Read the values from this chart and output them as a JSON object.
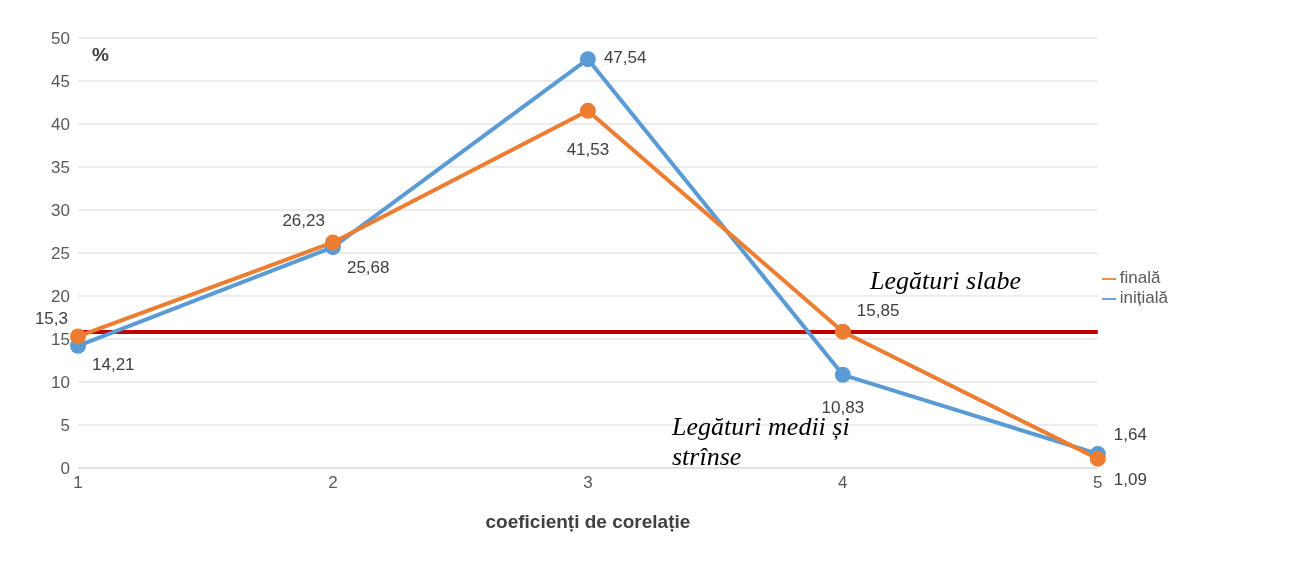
{
  "chart_data": {
    "type": "line",
    "xlabel": "coeficienți de  corelație",
    "ylabel": "%",
    "categories": [
      "1",
      "2",
      "3",
      "4",
      "5"
    ],
    "series": [
      {
        "name": "inițială",
        "color": "#5b9bd5",
        "values": [
          14.21,
          25.68,
          47.54,
          10.83,
          1.64
        ],
        "value_labels": [
          "14,21",
          "25,68",
          "47,54",
          "10,83",
          "1,64"
        ]
      },
      {
        "name": "finală",
        "color": "#ed7d31",
        "values": [
          15.3,
          26.23,
          41.53,
          15.85,
          1.09
        ],
        "value_labels": [
          "15,3",
          "26,23",
          "41,53",
          "15,85",
          "1,09"
        ]
      }
    ],
    "ylim": [
      0,
      50
    ],
    "yticks": [
      0,
      5,
      10,
      15,
      20,
      25,
      30,
      35,
      40,
      45,
      50
    ],
    "grid": "y",
    "legend": "right",
    "marker": "circle",
    "line_style": "solid",
    "ref_lines": [
      {
        "axis": "y",
        "value": 15.8,
        "color": "#c00000"
      }
    ],
    "annotations": [
      "Legături slabe",
      "Legături medii și\nstrînse"
    ]
  }
}
